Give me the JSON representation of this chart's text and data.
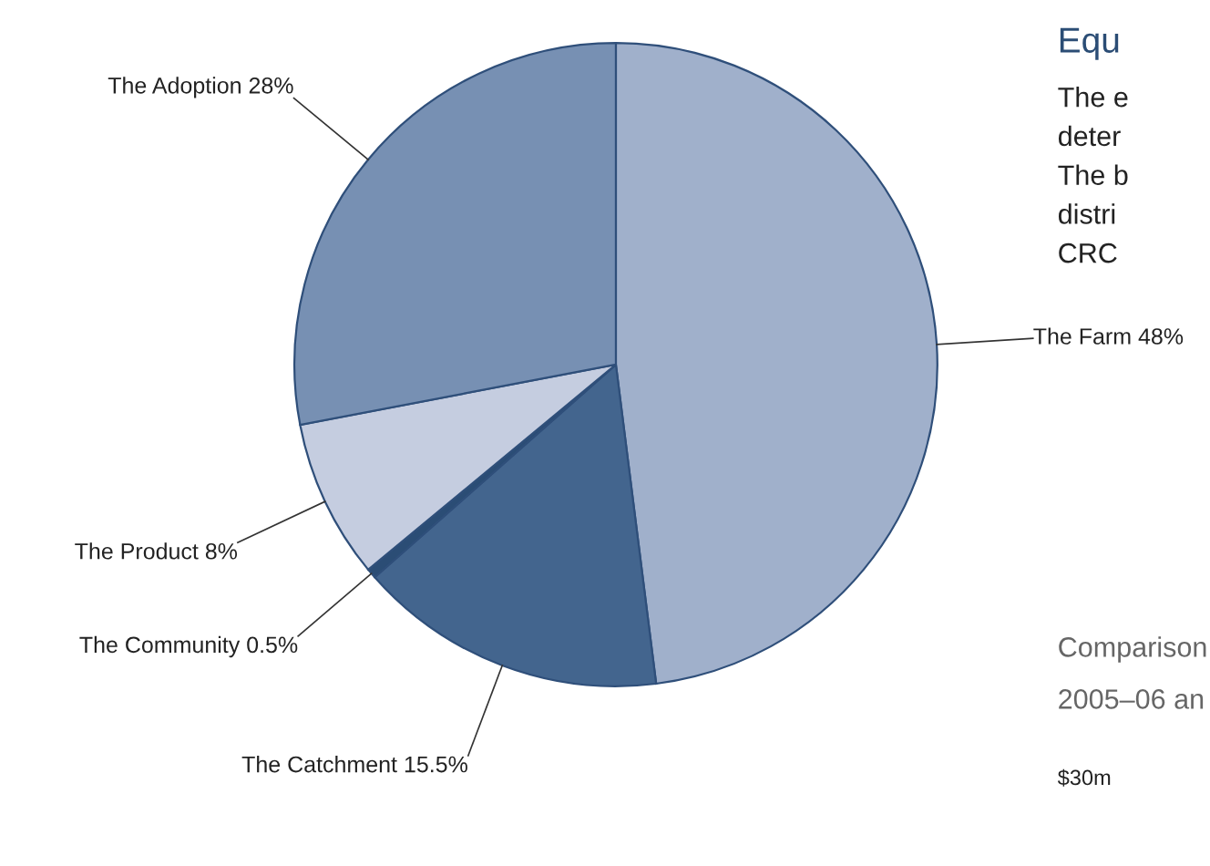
{
  "chart_data": [
    {
      "type": "pie",
      "categories": [
        "The Farm",
        "The Catchment",
        "The Community",
        "The Product",
        "The Adoption"
      ],
      "values": [
        48,
        15.5,
        0.5,
        8,
        28
      ],
      "value_labels": [
        "48%",
        "15.5%",
        "0.5%",
        "8%",
        "28%"
      ],
      "colors": [
        "#a0b0cb",
        "#43658e",
        "#2b4d75",
        "#c5cde0",
        "#7790b3"
      ]
    },
    {
      "type": "other",
      "title": "Equ",
      "annotations": [
        "The e",
        "deter",
        "The b",
        "distri",
        "CRC",
        "Comparison",
        "2005–06 an",
        "$30m"
      ]
    }
  ]
}
